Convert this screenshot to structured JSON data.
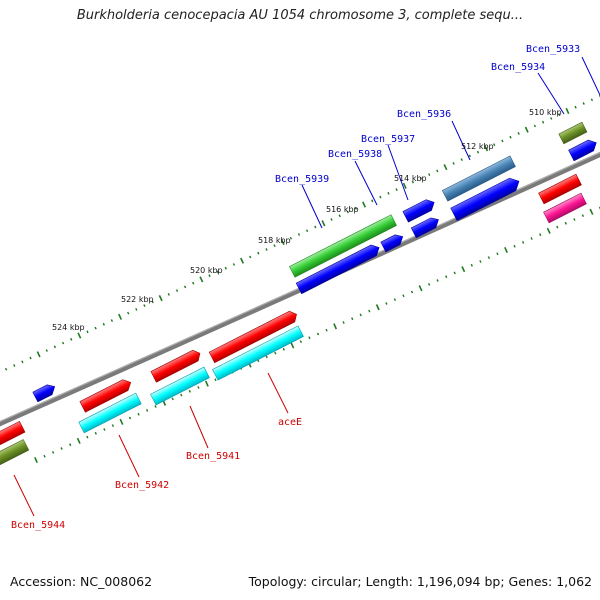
{
  "title": "Burkholderia cenocepacia AU 1054 chromosome 3, complete sequ...",
  "footer": {
    "accession": "Accession: NC_008062",
    "summary": "Topology: circular; Length: 1,196,094 bp; Genes: 1,062"
  },
  "colors": {
    "backbone": "#7a7a7a",
    "tick": "#1f7a1f",
    "top_label": "#0000cc",
    "bottom_label": "#cc0000",
    "red": "#ff0000",
    "cyan": "#00ffff",
    "blue": "#0000ff",
    "green": "#33cc33",
    "olive": "#6b8e23",
    "steelblue": "#4682b4",
    "pink": "#ff1493"
  },
  "scale_labels": [
    "510 kbp",
    "512 kbp",
    "514 kbp",
    "516 kbp",
    "518 kbp",
    "520 kbp",
    "522 kbp",
    "524 kbp"
  ],
  "gene_labels_top": [
    "Bcen_5933",
    "Bcen_5934",
    "Bcen_5936",
    "Bcen_5937",
    "Bcen_5938",
    "Bcen_5939"
  ],
  "gene_labels_bottom": [
    "aceE",
    "Bcen_5941",
    "Bcen_5942",
    "Bcen_5944"
  ]
}
